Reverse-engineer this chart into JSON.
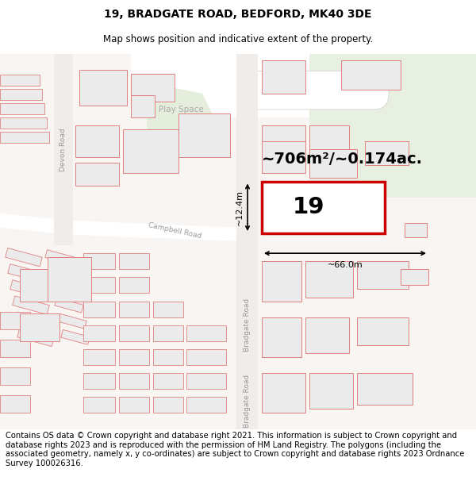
{
  "title_line1": "19, BRADGATE ROAD, BEDFORD, MK40 3DE",
  "title_line2": "Map shows position and indicative extent of the property.",
  "footer_text": "Contains OS data © Crown copyright and database right 2021. This information is subject to Crown copyright and database rights 2023 and is reproduced with the permission of HM Land Registry. The polygons (including the associated geometry, namely x, y co-ordinates) are subject to Crown copyright and database rights 2023 Ordnance Survey 100026316.",
  "area_label": "~706m²/~0.174ac.",
  "number_label": "19",
  "dim_width": "~66.0m",
  "dim_height": "~12.4m",
  "bg_color": "#ffffff",
  "map_bg": "#f8f5f3",
  "building_fill": "#ebebeb",
  "building_stroke": "#e08080",
  "highlight_stroke": "#cc0000",
  "highlight_fill": "#ffffff",
  "green_fill": "#e8f0e0",
  "street_label_color": "#999999",
  "title_fontsize": 10,
  "subtitle_fontsize": 8.5,
  "footer_fontsize": 7.2
}
